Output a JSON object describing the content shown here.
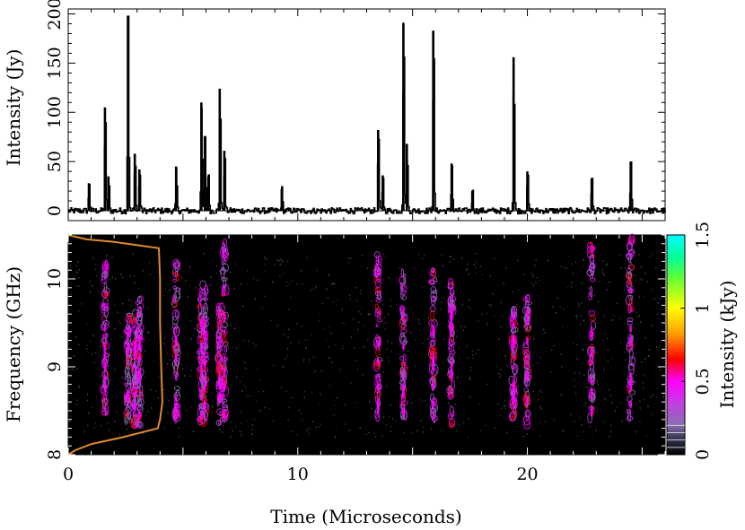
{
  "chart_data": [
    {
      "type": "line",
      "panel": "top",
      "ylabel": "Intensity (Jy)",
      "xlim": [
        0,
        26
      ],
      "ylim": [
        -10,
        205
      ],
      "yticks": [
        0,
        50,
        100,
        150,
        200
      ],
      "ytick_labels": [
        "0",
        "50",
        "100",
        "150",
        "200"
      ],
      "baseline": 0,
      "noise_level": 3,
      "pulses": [
        {
          "t": 0.9,
          "peak": 28
        },
        {
          "t": 1.6,
          "peak": 105
        },
        {
          "t": 1.75,
          "peak": 35
        },
        {
          "t": 2.6,
          "peak": 198
        },
        {
          "t": 2.9,
          "peak": 58
        },
        {
          "t": 3.1,
          "peak": 42
        },
        {
          "t": 4.7,
          "peak": 45
        },
        {
          "t": 5.8,
          "peak": 110
        },
        {
          "t": 5.95,
          "peak": 76
        },
        {
          "t": 6.1,
          "peak": 35
        },
        {
          "t": 6.6,
          "peak": 124
        },
        {
          "t": 6.8,
          "peak": 61
        },
        {
          "t": 9.3,
          "peak": 22
        },
        {
          "t": 13.5,
          "peak": 82
        },
        {
          "t": 13.7,
          "peak": 36
        },
        {
          "t": 14.6,
          "peak": 191
        },
        {
          "t": 14.75,
          "peak": 68
        },
        {
          "t": 15.9,
          "peak": 183
        },
        {
          "t": 16.7,
          "peak": 48
        },
        {
          "t": 17.6,
          "peak": 20
        },
        {
          "t": 19.4,
          "peak": 156
        },
        {
          "t": 20.0,
          "peak": 40
        },
        {
          "t": 22.8,
          "peak": 33
        },
        {
          "t": 24.5,
          "peak": 50
        }
      ]
    },
    {
      "type": "heatmap",
      "panel": "bottom",
      "xlabel": "Time (Microseconds)",
      "ylabel": "Frequency (GHz)",
      "xlim": [
        0,
        26
      ],
      "ylim": [
        8,
        10.5
      ],
      "xticks": [
        0,
        10,
        20
      ],
      "xtick_labels": [
        "0",
        "10",
        "20"
      ],
      "yticks": [
        8,
        9,
        10
      ],
      "ytick_labels": [
        "8",
        "9",
        "10"
      ],
      "background": "#000000",
      "bright_times": [
        1.6,
        2.6,
        2.9,
        3.1,
        4.7,
        5.8,
        5.95,
        6.6,
        6.8,
        13.5,
        14.6,
        15.9,
        16.7,
        19.4,
        20.0,
        22.8,
        24.5
      ],
      "bandpass": {
        "color": "#e08a2c",
        "freq": [
          8.0,
          8.05,
          8.12,
          8.2,
          8.3,
          8.4,
          8.6,
          9.0,
          9.5,
          10.0,
          10.35,
          10.42,
          10.45,
          10.5
        ],
        "width": [
          0.0,
          0.3,
          1.0,
          2.4,
          3.9,
          4.0,
          4.1,
          4.05,
          4.0,
          4.0,
          3.95,
          2.0,
          0.8,
          0.0
        ]
      }
    },
    {
      "type": "colorbar",
      "label": "Intensity (kJy)",
      "range": [
        0,
        1.5
      ],
      "ticks": [
        0,
        0.5,
        1,
        1.5
      ],
      "tick_labels": [
        "0",
        "0.5",
        "1",
        "1.5"
      ],
      "stops": [
        {
          "v": 0.0,
          "color": "#000000"
        },
        {
          "v": 0.12,
          "color": "#3a3a5a"
        },
        {
          "v": 0.2,
          "color": "#8a6fb0"
        },
        {
          "v": 0.35,
          "color": "#c040e0"
        },
        {
          "v": 0.5,
          "color": "#ff00ff"
        },
        {
          "v": 0.65,
          "color": "#ff0000"
        },
        {
          "v": 0.82,
          "color": "#ff9900"
        },
        {
          "v": 1.0,
          "color": "#ffff00"
        },
        {
          "v": 1.2,
          "color": "#66ff33"
        },
        {
          "v": 1.35,
          "color": "#00ff99"
        },
        {
          "v": 1.5,
          "color": "#00ffff"
        }
      ]
    }
  ]
}
